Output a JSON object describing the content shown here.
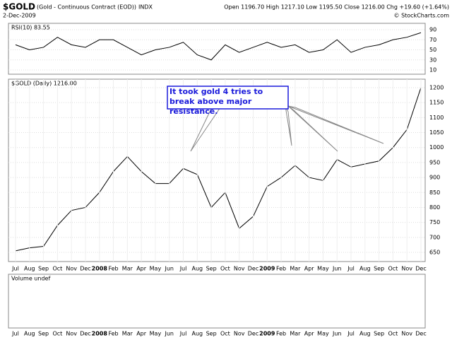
{
  "header": {
    "symbol": "$GOLD",
    "description": "(Gold - Continuous Contract (EOD))",
    "exchange": "INDX",
    "date": "2-Dec-2009",
    "quote": "Open 1196.70  High 1217.10  Low 1195.50  Close 1216.00  Chg +19.60 (+1.64%)",
    "credit": "© StockCharts.com"
  },
  "chart_data": [
    {
      "type": "line",
      "title": "RSI(10) 83.55",
      "categories": [
        "Jul",
        "Aug",
        "Sep",
        "Oct",
        "Nov",
        "Dec",
        "2008",
        "Feb",
        "Mar",
        "Apr",
        "May",
        "Jun",
        "Jul",
        "Aug",
        "Sep",
        "Oct",
        "Nov",
        "Dec",
        "2009",
        "Feb",
        "Mar",
        "Apr",
        "May",
        "Jun",
        "Jul",
        "Aug",
        "Sep",
        "Oct",
        "Nov",
        "Dec"
      ],
      "series": [
        {
          "name": "RSI(10)",
          "color": "#000000",
          "values": [
            60,
            50,
            55,
            75,
            60,
            55,
            70,
            70,
            55,
            40,
            50,
            55,
            65,
            40,
            30,
            60,
            45,
            55,
            65,
            55,
            60,
            45,
            50,
            70,
            45,
            55,
            60,
            70,
            75,
            84
          ]
        }
      ],
      "ylim": [
        0,
        100
      ],
      "yticks": [
        10,
        30,
        50,
        70,
        90
      ],
      "grid": true
    },
    {
      "type": "line",
      "title": "$GOLD (Daily) 1216.00",
      "categories": [
        "Jul",
        "Aug",
        "Sep",
        "Oct",
        "Nov",
        "Dec",
        "2008",
        "Feb",
        "Mar",
        "Apr",
        "May",
        "Jun",
        "Jul",
        "Aug",
        "Sep",
        "Oct",
        "Nov",
        "Dec",
        "2009",
        "Feb",
        "Mar",
        "Apr",
        "May",
        "Jun",
        "Jul",
        "Aug",
        "Sep",
        "Oct",
        "Nov",
        "Dec"
      ],
      "series": [
        {
          "name": "$GOLD",
          "color": "#000000",
          "values": [
            655,
            665,
            670,
            740,
            790,
            800,
            850,
            920,
            970,
            920,
            880,
            880,
            930,
            910,
            800,
            850,
            730,
            770,
            870,
            900,
            940,
            900,
            890,
            960,
            935,
            945,
            955,
            1000,
            1060,
            1200
          ]
        }
      ],
      "ylim": [
        620,
        1230
      ],
      "yticks": [
        650,
        700,
        750,
        800,
        850,
        900,
        950,
        1000,
        1050,
        1100,
        1150,
        1200
      ],
      "grid": true,
      "annotation": "It took gold 4 tries to break above major resistance."
    }
  ],
  "volume": {
    "title": "Volume undef"
  }
}
